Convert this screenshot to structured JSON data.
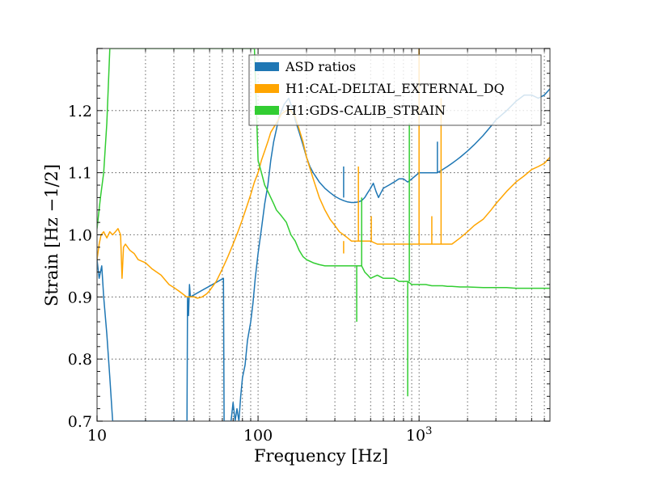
{
  "chart_data": {
    "type": "line",
    "title": "",
    "xlabel": "Frequency [Hz]",
    "ylabel": "Strain [Hz −1/2]",
    "xscale": "log",
    "xlim": [
      10,
      6500
    ],
    "ylim": [
      0.7,
      1.3
    ],
    "grid": true,
    "legend_position": "top-right",
    "x_ticks": [
      {
        "value": 10,
        "label": "10"
      },
      {
        "value": 100,
        "label": "100"
      },
      {
        "value": 1000,
        "label": "10",
        "sup": "3"
      }
    ],
    "y_ticks": [
      {
        "value": 0.7,
        "label": "0.7"
      },
      {
        "value": 0.8,
        "label": "0.8"
      },
      {
        "value": 0.9,
        "label": "0.9"
      },
      {
        "value": 1.0,
        "label": "1.0"
      },
      {
        "value": 1.1,
        "label": "1.1"
      },
      {
        "value": 1.2,
        "label": "1.2"
      }
    ],
    "series": [
      {
        "name": "ASD ratios",
        "color": "#1f77b4",
        "x": [
          10,
          10.3,
          10.7,
          11,
          11.5,
          12,
          12.5,
          12.9,
          13.3,
          13.6,
          14,
          14.3,
          36.2,
          36.5,
          37,
          37.5,
          38,
          61,
          61.5,
          62,
          63,
          64,
          66,
          68,
          70,
          72,
          74,
          76,
          78,
          80,
          83,
          86,
          90,
          93,
          96,
          100,
          105,
          110,
          115,
          120,
          125,
          130,
          135,
          140,
          145,
          150,
          155,
          160,
          165,
          170,
          180,
          190,
          200,
          210,
          220,
          240,
          260,
          280,
          300,
          320,
          340,
          360,
          380,
          400,
          420,
          440,
          460,
          480,
          500,
          520,
          540,
          560,
          580,
          600,
          650,
          700,
          750,
          800,
          850,
          900,
          950,
          1000,
          1050,
          1100,
          1150,
          1200,
          1300,
          1400,
          1500,
          1600,
          1700,
          1800,
          2000,
          2200,
          2500,
          2800,
          3000,
          3500,
          4000,
          4500,
          5000,
          5500,
          6000,
          6500
        ],
        "y": [
          0.96,
          0.93,
          0.95,
          0.9,
          0.84,
          0.77,
          0.7,
          0.7,
          0.7,
          0.7,
          0.7,
          0.7,
          0.7,
          0.9,
          0.87,
          0.92,
          0.9,
          0.93,
          0.7,
          0.7,
          0.7,
          0.7,
          0.7,
          0.7,
          0.73,
          0.7,
          0.72,
          0.7,
          0.74,
          0.77,
          0.79,
          0.83,
          0.86,
          0.89,
          0.93,
          0.97,
          1.01,
          1.05,
          1.08,
          1.12,
          1.15,
          1.17,
          1.19,
          1.2,
          1.21,
          1.215,
          1.22,
          1.21,
          1.2,
          1.185,
          1.165,
          1.145,
          1.125,
          1.11,
          1.1,
          1.085,
          1.075,
          1.068,
          1.062,
          1.058,
          1.055,
          1.053,
          1.052,
          1.052,
          1.053,
          1.055,
          1.06,
          1.068,
          1.075,
          1.083,
          1.07,
          1.06,
          1.068,
          1.075,
          1.08,
          1.085,
          1.09,
          1.09,
          1.085,
          1.09,
          1.095,
          1.1,
          1.1,
          1.1,
          1.1,
          1.1,
          1.1,
          1.105,
          1.11,
          1.115,
          1.12,
          1.125,
          1.135,
          1.145,
          1.16,
          1.175,
          1.185,
          1.2,
          1.215,
          1.225,
          1.225,
          1.22,
          1.225,
          1.235
        ]
      },
      {
        "name": "H1:CAL-DELTAL_EXTERNAL_DQ",
        "color": "#ffa500",
        "x": [
          10,
          10.3,
          10.6,
          11,
          11.5,
          12,
          12.5,
          13,
          13.5,
          14,
          14.3,
          14.6,
          15,
          16,
          17,
          18,
          20,
          22,
          25,
          28,
          30,
          32,
          34,
          36,
          38,
          40,
          42,
          45,
          48,
          50,
          55,
          60,
          65,
          70,
          75,
          80,
          85,
          90,
          95,
          100,
          105,
          110,
          115,
          120,
          130,
          140,
          150,
          160,
          170,
          180,
          190,
          200,
          220,
          240,
          260,
          280,
          300,
          320,
          340,
          360,
          380,
          400,
          420,
          440,
          460,
          480,
          500,
          550,
          600,
          650,
          700,
          750,
          800,
          850,
          900,
          950,
          1000,
          1100,
          1200,
          1300,
          1400,
          1500,
          1600,
          1800,
          2000,
          2200,
          2500,
          2800,
          3000,
          3500,
          4000,
          4500,
          5000,
          5500,
          6000,
          6500
        ],
        "y": [
          0.96,
          0.985,
          1.0,
          1.005,
          0.995,
          1.005,
          1.0,
          1.005,
          1.01,
          1.0,
          0.93,
          0.98,
          0.985,
          0.975,
          0.97,
          0.96,
          0.955,
          0.945,
          0.935,
          0.92,
          0.915,
          0.91,
          0.905,
          0.9,
          0.9,
          0.9,
          0.898,
          0.9,
          0.905,
          0.91,
          0.925,
          0.945,
          0.965,
          0.985,
          1.005,
          1.025,
          1.045,
          1.065,
          1.085,
          1.1,
          1.12,
          1.135,
          1.15,
          1.165,
          1.18,
          1.195,
          1.2,
          1.2,
          1.19,
          1.17,
          1.15,
          1.125,
          1.09,
          1.06,
          1.04,
          1.025,
          1.015,
          1.005,
          1.0,
          0.995,
          0.99,
          0.99,
          0.99,
          0.99,
          0.99,
          0.99,
          0.99,
          0.985,
          0.985,
          0.985,
          0.985,
          0.985,
          0.985,
          0.985,
          0.985,
          0.985,
          0.985,
          0.985,
          0.985,
          0.985,
          0.985,
          0.985,
          0.985,
          0.995,
          1.005,
          1.015,
          1.025,
          1.04,
          1.05,
          1.07,
          1.085,
          1.095,
          1.105,
          1.11,
          1.115,
          1.125
        ]
      },
      {
        "name": "H1:GDS-CALIB_STRAIN",
        "color": "#32cd32",
        "x": [
          10,
          10.5,
          11,
          11.5,
          12,
          12.5,
          13,
          13.5,
          14,
          14.3,
          36,
          37,
          38,
          61,
          62,
          65,
          70,
          75,
          80,
          85,
          90,
          95,
          100,
          105,
          110,
          115,
          120,
          125,
          130,
          140,
          150,
          160,
          170,
          180,
          190,
          200,
          220,
          240,
          260,
          280,
          300,
          320,
          340,
          360,
          380,
          400,
          420,
          440,
          460,
          480,
          500,
          550,
          600,
          650,
          700,
          750,
          800,
          850,
          900,
          950,
          1000,
          1100,
          1200,
          1300,
          1400,
          1500,
          1600,
          1800,
          2000,
          2500,
          3000,
          3500,
          4000,
          4500,
          5000,
          5500,
          6000,
          6500
        ],
        "y": [
          1.01,
          1.06,
          1.1,
          1.18,
          1.3,
          1.3,
          1.3,
          1.3,
          1.3,
          1.3,
          1.3,
          1.3,
          1.3,
          1.3,
          1.3,
          1.3,
          1.3,
          1.3,
          1.3,
          1.3,
          1.3,
          1.3,
          1.12,
          1.1,
          1.08,
          1.07,
          1.06,
          1.05,
          1.04,
          1.03,
          1.02,
          1.0,
          0.99,
          0.975,
          0.965,
          0.96,
          0.955,
          0.952,
          0.95,
          0.95,
          0.95,
          0.95,
          0.95,
          0.95,
          0.95,
          0.95,
          0.95,
          0.95,
          0.94,
          0.935,
          0.93,
          0.935,
          0.93,
          0.93,
          0.93,
          0.925,
          0.925,
          0.925,
          0.92,
          0.92,
          0.92,
          0.92,
          0.918,
          0.918,
          0.918,
          0.917,
          0.917,
          0.916,
          0.916,
          0.915,
          0.915,
          0.915,
          0.914,
          0.914,
          0.914,
          0.914,
          0.914,
          0.914
        ]
      }
    ],
    "spikes": [
      {
        "series": 0,
        "x": 340,
        "y_from": 1.06,
        "y_to": 1.11
      },
      {
        "series": 0,
        "x": 1300,
        "y_from": 1.1,
        "y_to": 1.15
      },
      {
        "series": 1,
        "x": 340,
        "y_from": 0.99,
        "y_to": 0.97
      },
      {
        "series": 1,
        "x": 420,
        "y_from": 0.99,
        "y_to": 1.11
      },
      {
        "series": 1,
        "x": 505,
        "y_from": 0.99,
        "y_to": 1.03
      },
      {
        "series": 1,
        "x": 1000,
        "y_from": 0.985,
        "y_to": 1.3
      },
      {
        "series": 1,
        "x": 1200,
        "y_from": 0.985,
        "y_to": 1.03
      },
      {
        "series": 1,
        "x": 1370,
        "y_from": 0.985,
        "y_to": 1.22
      },
      {
        "series": 2,
        "x": 410,
        "y_from": 0.95,
        "y_to": 0.86
      },
      {
        "series": 2,
        "x": 440,
        "y_from": 0.95,
        "y_to": 1.06
      },
      {
        "series": 2,
        "x": 850,
        "y_from": 0.925,
        "y_to": 0.74
      },
      {
        "series": 2,
        "x": 870,
        "y_from": 0.925,
        "y_to": 1.18
      }
    ]
  }
}
